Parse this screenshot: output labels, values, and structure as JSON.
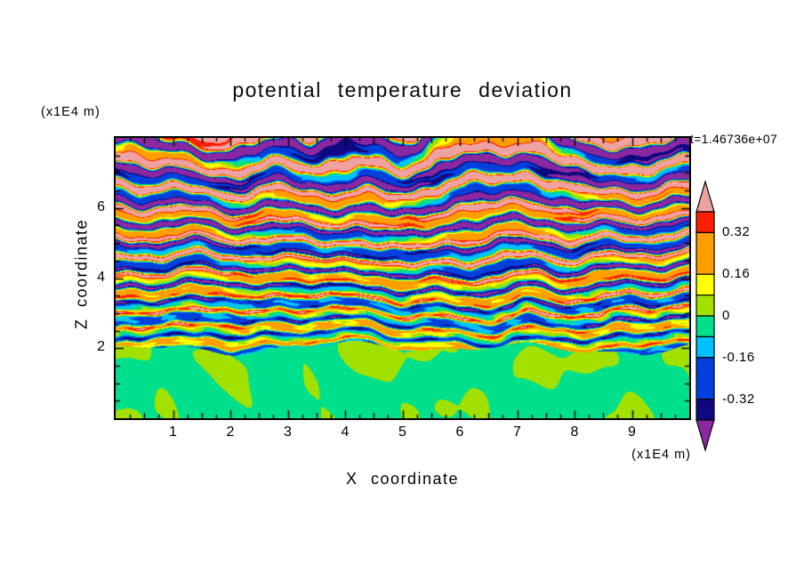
{
  "title": "potential temperature deviation",
  "timestamp": "t=1.46736e+07",
  "axes": {
    "x": {
      "label": "X coordinate",
      "unit": "(x1E4 m)",
      "tick_labels": [
        "1",
        "2",
        "3",
        "4",
        "5",
        "6",
        "7",
        "8",
        "9"
      ],
      "tick_values": [
        1,
        2,
        3,
        4,
        5,
        6,
        7,
        8,
        9
      ],
      "range": [
        0,
        10
      ]
    },
    "z": {
      "label": "Z coordinate",
      "unit": "(x1E4 m)",
      "tick_labels": [
        "2",
        "4",
        "6"
      ],
      "tick_values": [
        2,
        4,
        6
      ],
      "range": [
        0,
        8
      ]
    }
  },
  "colorbar": {
    "labels": [
      "0.32",
      "0.16",
      "0",
      "-0.16",
      "-0.32"
    ],
    "label_values": [
      0.32,
      0.16,
      0,
      -0.16,
      -0.32
    ]
  },
  "chart_data": {
    "type": "heatmap",
    "title": "potential temperature deviation",
    "xlabel": "X coordinate",
    "ylabel": "Z coordinate",
    "x_unit": "(x1E4 m)",
    "z_unit": "(x1E4 m)",
    "x_range": [
      0,
      10
    ],
    "z_range": [
      0,
      8
    ],
    "time_label": "t=1.46736e+07",
    "contour_levels": [
      0.4,
      0.32,
      0.16,
      0.08,
      0,
      -0.08,
      -0.16,
      -0.32,
      -0.4
    ],
    "palette": {
      "above": "#efa2a2",
      "bands": [
        "#ff1e00",
        "#ff9e00",
        "#ffff00",
        "#a2e000",
        "#00e08c",
        "#00c0ff",
        "#0040dc",
        "#100880"
      ],
      "below": "#8a28a0"
    },
    "features": {
      "boundary_layer_top_z": 2,
      "boundary_layer": "convective mixed layer below z=2 with plume blobs, values near 0 (green shades)",
      "upper_region": "horizontally layered gravity-wave bands; amplitude grows with height and saturates beyond +/-0.4 (pink/purple bands)"
    }
  }
}
